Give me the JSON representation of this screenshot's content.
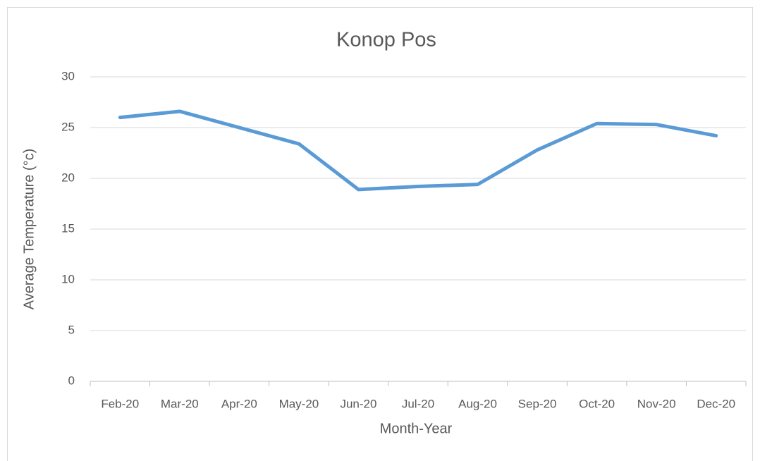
{
  "chart_data": {
    "type": "line",
    "title": "Konop Pos",
    "x_label": "Month-Year",
    "y_label": "Average Temperature (°c)",
    "categories": [
      "Feb-20",
      "Mar-20",
      "Apr-20",
      "May-20",
      "Jun-20",
      "Jul-20",
      "Aug-20",
      "Sep-20",
      "Oct-20",
      "Nov-20",
      "Dec-20"
    ],
    "series": [
      {
        "name": "Average Temperature",
        "color": "#5b9bd5",
        "values": [
          26.0,
          26.6,
          25.0,
          23.4,
          18.9,
          19.2,
          19.4,
          22.8,
          25.4,
          25.3,
          24.2
        ]
      }
    ],
    "ylim": [
      0,
      30
    ],
    "yticks": [
      0,
      5,
      10,
      15,
      20,
      25,
      30
    ],
    "grid": true
  }
}
